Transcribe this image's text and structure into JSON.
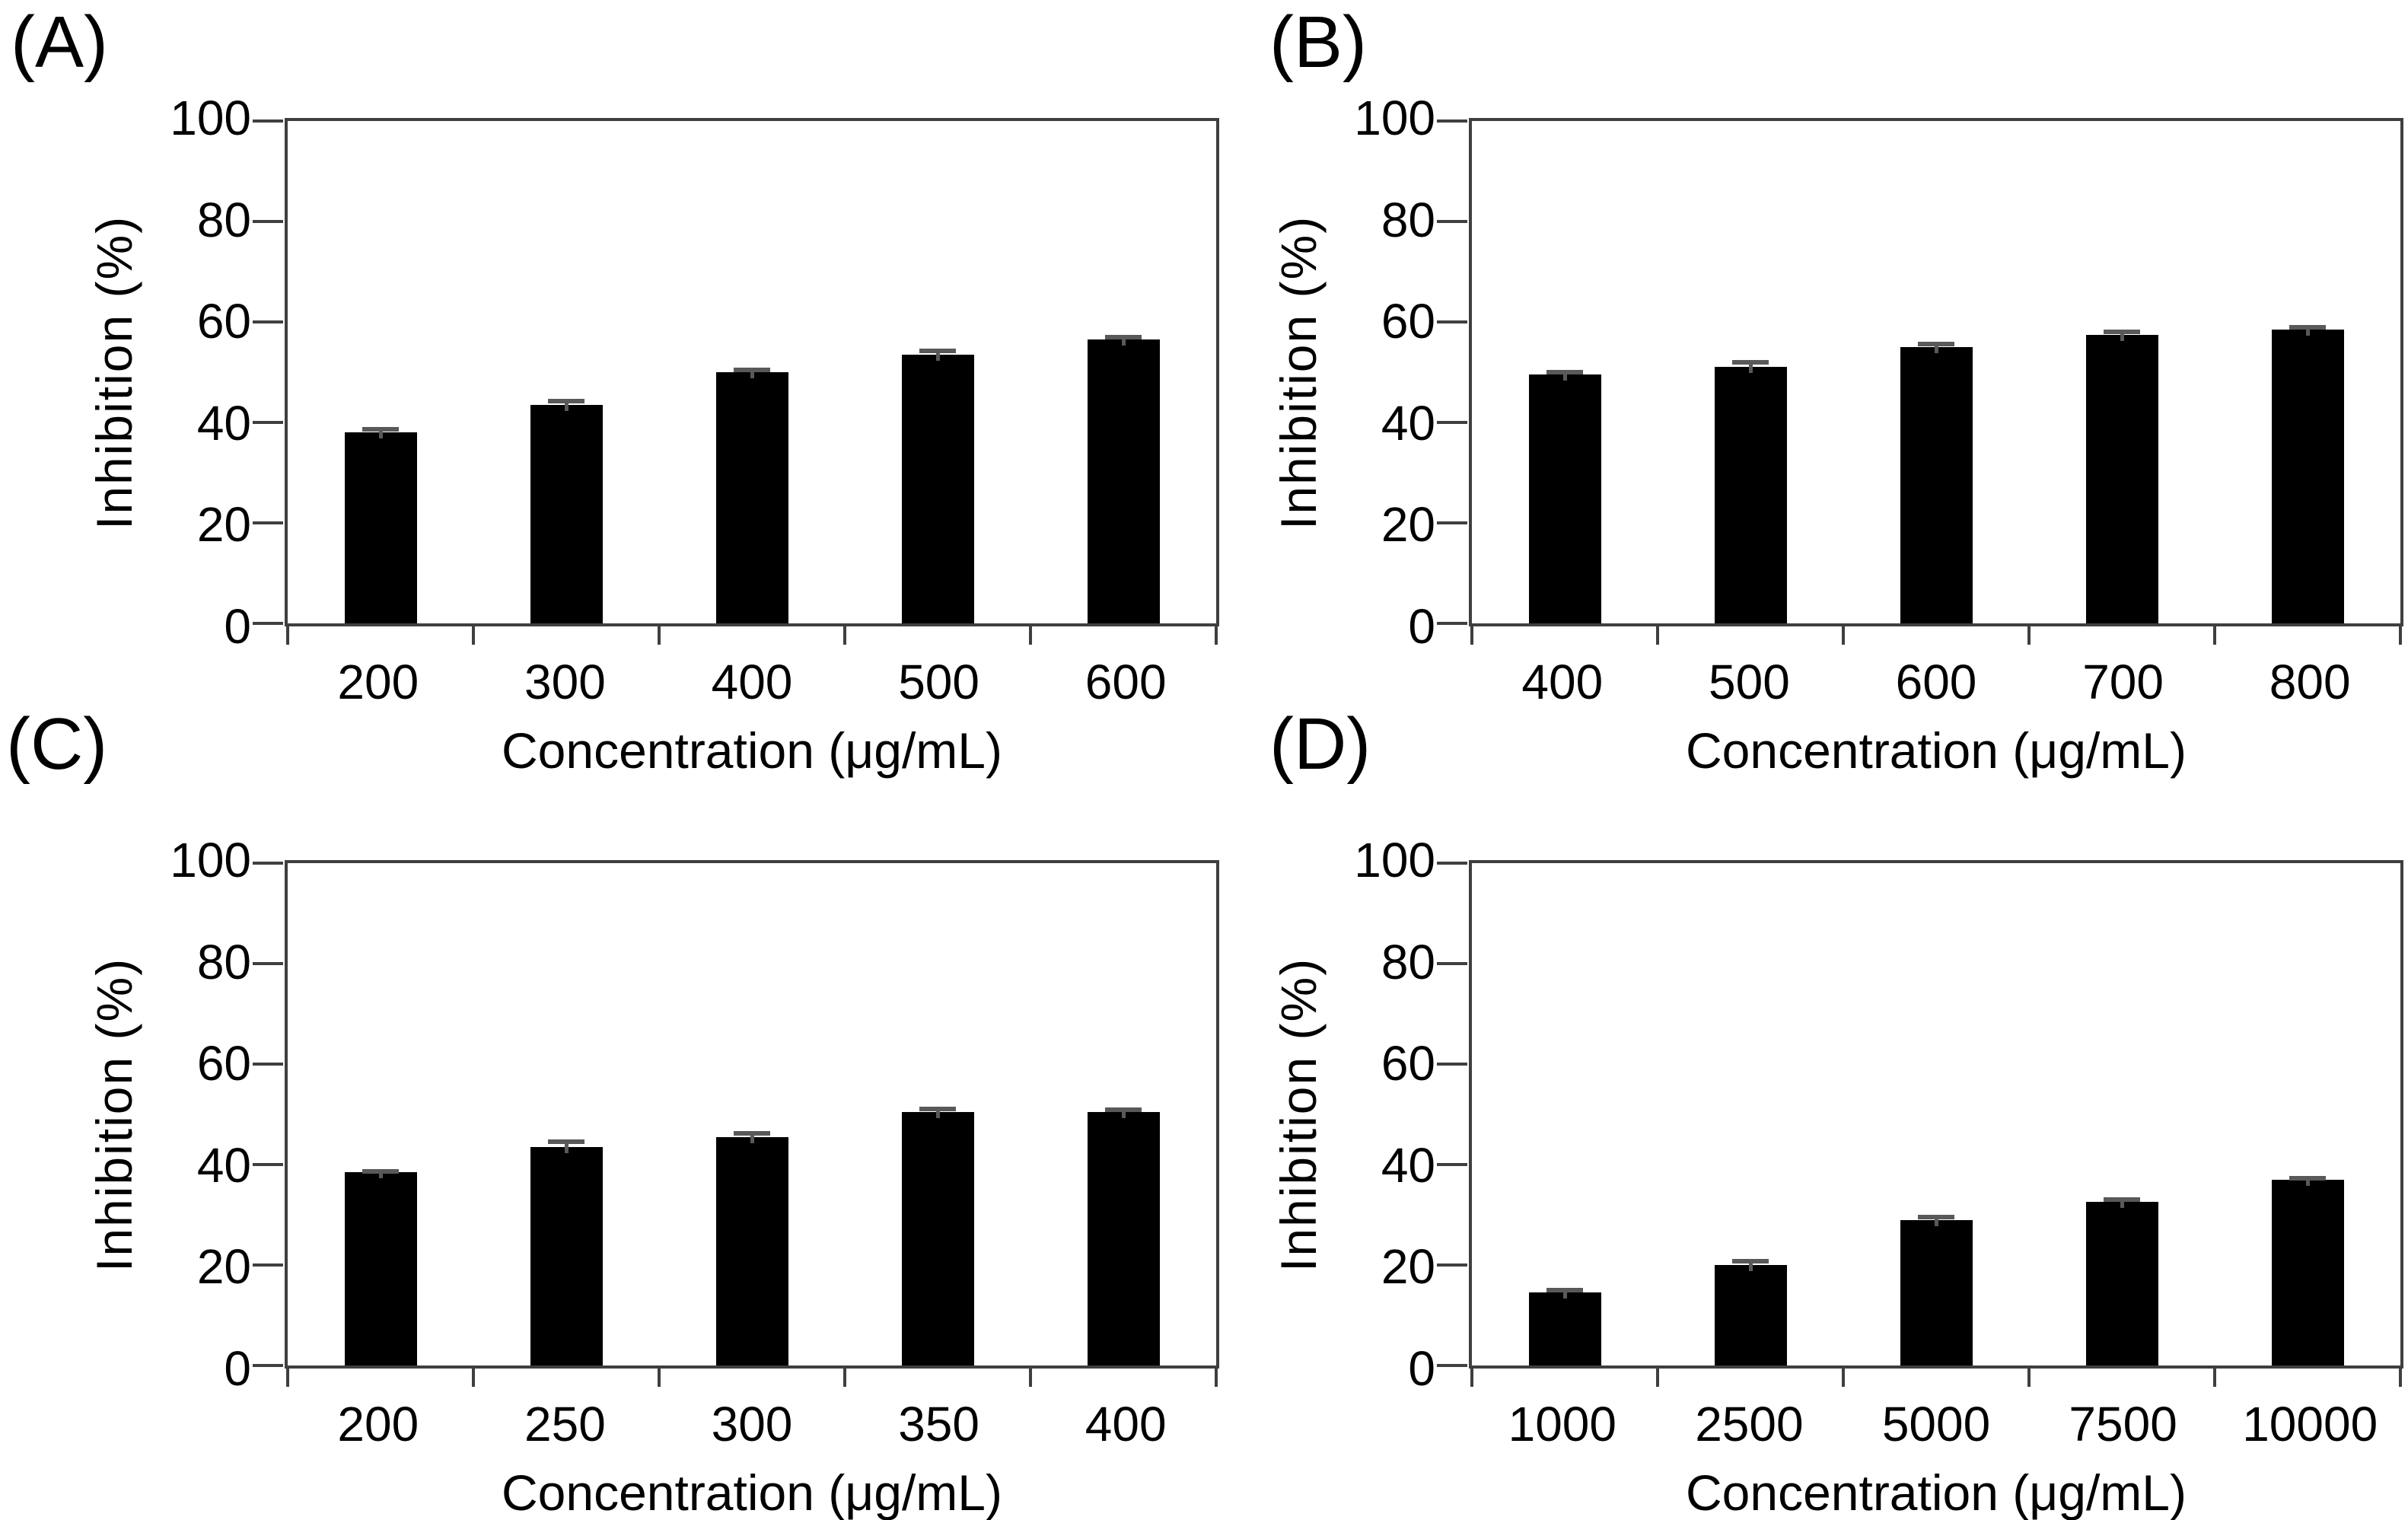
{
  "colors": {
    "bar": "#000000",
    "axis": "#3f3f3f",
    "error_bar": "#595959",
    "background": "#ffffff",
    "text": "#000000"
  },
  "chart_data": [
    {
      "type": "bar",
      "panel_label": "(A)",
      "categories": [
        "200",
        "300",
        "400",
        "500",
        "600"
      ],
      "values": [
        38,
        43.5,
        50,
        53.5,
        56.5
      ],
      "errors": [
        0.6,
        0.8,
        0.5,
        0.7,
        0.4
      ],
      "xlabel": "Concentration (μg/mL)",
      "ylabel": "Inhibition (%)",
      "ylim": [
        0,
        100
      ],
      "yticks": [
        0,
        20,
        40,
        60,
        80,
        100
      ],
      "grid": false,
      "legend": "none"
    },
    {
      "type": "bar",
      "panel_label": "(B)",
      "categories": [
        "400",
        "500",
        "600",
        "700",
        "800"
      ],
      "values": [
        49.5,
        51,
        55,
        57.5,
        58.5
      ],
      "errors": [
        0.5,
        0.9,
        0.6,
        0.5,
        0.5
      ],
      "xlabel": "Concentration (μg/mL)",
      "ylabel": "Inhibition (%)",
      "ylim": [
        0,
        100
      ],
      "yticks": [
        0,
        20,
        40,
        60,
        80,
        100
      ],
      "grid": false,
      "legend": "none"
    },
    {
      "type": "bar",
      "panel_label": "(C)",
      "categories": [
        "200",
        "250",
        "300",
        "350",
        "400"
      ],
      "values": [
        38.5,
        43.5,
        45.5,
        50.5,
        50.5
      ],
      "errors": [
        0.2,
        1.0,
        0.7,
        0.5,
        0.4
      ],
      "xlabel": "Concentration (μg/mL)",
      "ylabel": "Inhibition (%)",
      "ylim": [
        0,
        100
      ],
      "yticks": [
        0,
        20,
        40,
        60,
        80,
        100
      ],
      "grid": false,
      "legend": "none"
    },
    {
      "type": "bar",
      "panel_label": "(D)",
      "categories": [
        "1000",
        "2500",
        "5000",
        "7500",
        "10000"
      ],
      "values": [
        14.5,
        20,
        29,
        32.5,
        37
      ],
      "errors": [
        0.5,
        0.8,
        0.6,
        0.5,
        0.2
      ],
      "xlabel": "Concentration (μg/mL)",
      "ylabel": "Inhibition (%)",
      "ylim": [
        0,
        100
      ],
      "yticks": [
        0,
        20,
        40,
        60,
        80,
        100
      ],
      "grid": false,
      "legend": "none"
    }
  ]
}
